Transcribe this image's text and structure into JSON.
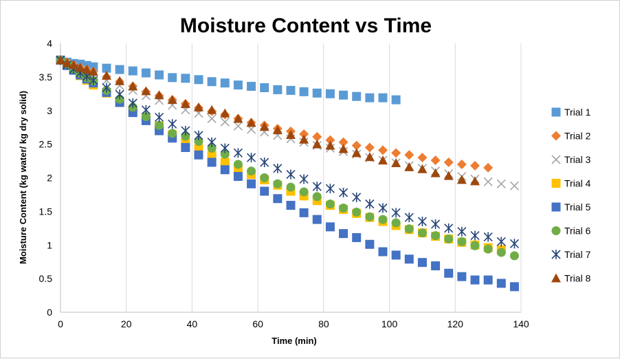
{
  "chart_data": {
    "type": "scatter",
    "title": "Moisture Content vs Time",
    "xlabel": "Time (min)",
    "ylabel": "Moisture Content (kg water/ kg dry solid)",
    "xlim": [
      0,
      140
    ],
    "ylim": [
      0,
      4
    ],
    "xticks": [
      0,
      20,
      40,
      60,
      80,
      100,
      120,
      140
    ],
    "yticks": [
      0,
      0.5,
      1,
      1.5,
      2,
      2.5,
      3,
      3.5,
      4
    ],
    "grid": "vertical",
    "legend_position": "right",
    "series": [
      {
        "name": "Trial 1",
        "marker": "square",
        "color": "#5b9bd5",
        "x": [
          0,
          2,
          4,
          6,
          8,
          10,
          14,
          18,
          22,
          26,
          30,
          34,
          38,
          42,
          46,
          50,
          54,
          58,
          62,
          66,
          70,
          74,
          78,
          82,
          86,
          90,
          94,
          98,
          102
        ],
        "y": [
          3.75,
          3.72,
          3.7,
          3.69,
          3.67,
          3.65,
          3.63,
          3.61,
          3.59,
          3.56,
          3.53,
          3.49,
          3.48,
          3.46,
          3.43,
          3.41,
          3.38,
          3.36,
          3.34,
          3.31,
          3.3,
          3.28,
          3.26,
          3.25,
          3.23,
          3.21,
          3.19,
          3.19,
          3.16
        ]
      },
      {
        "name": "Trial 2",
        "marker": "diamond",
        "color": "#ed7d31",
        "x": [
          0,
          2,
          4,
          6,
          8,
          10,
          14,
          18,
          22,
          26,
          30,
          34,
          38,
          42,
          46,
          50,
          54,
          58,
          62,
          66,
          70,
          74,
          78,
          82,
          86,
          90,
          94,
          98,
          102,
          106,
          110,
          114,
          118,
          122,
          126,
          130
        ],
        "y": [
          3.75,
          3.72,
          3.68,
          3.64,
          3.61,
          3.58,
          3.5,
          3.43,
          3.36,
          3.28,
          3.22,
          3.16,
          3.1,
          3.04,
          2.99,
          2.94,
          2.88,
          2.82,
          2.78,
          2.73,
          2.69,
          2.65,
          2.61,
          2.56,
          2.53,
          2.48,
          2.45,
          2.41,
          2.37,
          2.34,
          2.3,
          2.26,
          2.23,
          2.2,
          2.18,
          2.15
        ]
      },
      {
        "name": "Trial 3",
        "marker": "x",
        "color": "#a5a5a5",
        "x": [
          0,
          2,
          4,
          6,
          8,
          10,
          14,
          18,
          22,
          26,
          30,
          34,
          38,
          42,
          46,
          50,
          54,
          58,
          62,
          66,
          70,
          74,
          78,
          82,
          86,
          90,
          94,
          98,
          102,
          106,
          110,
          114,
          118,
          122,
          126,
          130,
          134,
          138
        ],
        "y": [
          3.75,
          3.7,
          3.66,
          3.61,
          3.57,
          3.53,
          3.45,
          3.37,
          3.3,
          3.22,
          3.15,
          3.08,
          3.01,
          2.96,
          2.88,
          2.83,
          2.77,
          2.72,
          2.68,
          2.63,
          2.58,
          2.53,
          2.48,
          2.44,
          2.39,
          2.35,
          2.3,
          2.26,
          2.22,
          2.18,
          2.14,
          2.1,
          2.06,
          2.02,
          1.98,
          1.94,
          1.91,
          1.88
        ]
      },
      {
        "name": "Trial 4",
        "marker": "square",
        "color": "#ffc000",
        "x": [
          0,
          2,
          4,
          6,
          8,
          10,
          14,
          18,
          22,
          26,
          30,
          34,
          38,
          42,
          46,
          50,
          54,
          58,
          62,
          66,
          70,
          74,
          78,
          82,
          86,
          90,
          94,
          98,
          102,
          106,
          110,
          114,
          118,
          122,
          126,
          130,
          134
        ],
        "y": [
          3.75,
          3.68,
          3.6,
          3.52,
          3.45,
          3.38,
          3.26,
          3.12,
          3.0,
          2.88,
          2.77,
          2.64,
          2.53,
          2.43,
          2.33,
          2.23,
          2.13,
          2.05,
          1.97,
          1.89,
          1.8,
          1.73,
          1.66,
          1.59,
          1.53,
          1.47,
          1.41,
          1.35,
          1.29,
          1.23,
          1.18,
          1.13,
          1.09,
          1.04,
          1.0,
          0.96,
          0.93
        ]
      },
      {
        "name": "Trial 5",
        "marker": "square",
        "color": "#4472c4",
        "x": [
          0,
          2,
          4,
          6,
          8,
          10,
          14,
          18,
          22,
          26,
          30,
          34,
          38,
          42,
          46,
          50,
          54,
          58,
          62,
          66,
          70,
          74,
          78,
          82,
          86,
          90,
          94,
          98,
          102,
          106,
          110,
          114,
          118,
          122,
          126,
          130,
          134,
          138
        ],
        "y": [
          3.75,
          3.67,
          3.6,
          3.53,
          3.47,
          3.41,
          3.27,
          3.12,
          2.97,
          2.85,
          2.7,
          2.59,
          2.45,
          2.34,
          2.23,
          2.12,
          2.02,
          1.91,
          1.8,
          1.69,
          1.59,
          1.48,
          1.38,
          1.27,
          1.17,
          1.11,
          1.01,
          0.9,
          0.85,
          0.79,
          0.74,
          0.69,
          0.58,
          0.53,
          0.48,
          0.48,
          0.43,
          0.38
        ]
      },
      {
        "name": "Trial 6",
        "marker": "circle",
        "color": "#70ad47",
        "x": [
          0,
          2,
          4,
          6,
          8,
          10,
          14,
          18,
          22,
          26,
          30,
          34,
          38,
          42,
          46,
          50,
          54,
          58,
          62,
          66,
          70,
          74,
          78,
          82,
          86,
          90,
          94,
          98,
          102,
          106,
          110,
          114,
          118,
          122,
          126,
          130,
          134,
          138
        ],
        "y": [
          3.75,
          3.69,
          3.62,
          3.55,
          3.49,
          3.44,
          3.3,
          3.17,
          3.05,
          2.91,
          2.78,
          2.66,
          2.62,
          2.54,
          2.44,
          2.35,
          2.2,
          2.1,
          2.0,
          1.91,
          1.86,
          1.79,
          1.72,
          1.61,
          1.55,
          1.49,
          1.42,
          1.38,
          1.33,
          1.24,
          1.18,
          1.14,
          1.09,
          1.05,
          0.99,
          0.94,
          0.89,
          0.84
        ]
      },
      {
        "name": "Trial 7",
        "marker": "asterisk",
        "color": "#264478",
        "x": [
          0,
          2,
          4,
          6,
          8,
          10,
          14,
          18,
          22,
          26,
          30,
          34,
          38,
          42,
          46,
          50,
          54,
          58,
          62,
          66,
          70,
          74,
          78,
          82,
          86,
          90,
          94,
          98,
          102,
          106,
          110,
          114,
          118,
          122,
          126,
          130,
          134,
          138
        ],
        "y": [
          3.75,
          3.68,
          3.62,
          3.56,
          3.51,
          3.45,
          3.34,
          3.24,
          3.11,
          3.01,
          2.9,
          2.8,
          2.7,
          2.63,
          2.53,
          2.44,
          2.37,
          2.3,
          2.23,
          2.14,
          2.05,
          1.98,
          1.87,
          1.84,
          1.78,
          1.71,
          1.61,
          1.55,
          1.48,
          1.41,
          1.35,
          1.31,
          1.25,
          1.2,
          1.14,
          1.12,
          1.05,
          1.02
        ]
      },
      {
        "name": "Trial 8",
        "marker": "triangle",
        "color": "#9e480e",
        "x": [
          0,
          2,
          4,
          6,
          8,
          10,
          14,
          18,
          22,
          26,
          30,
          34,
          38,
          42,
          46,
          50,
          54,
          58,
          62,
          66,
          70,
          74,
          78,
          82,
          86,
          90,
          94,
          98,
          102,
          106,
          110,
          114,
          118,
          122,
          126
        ],
        "y": [
          3.75,
          3.71,
          3.68,
          3.64,
          3.61,
          3.58,
          3.52,
          3.44,
          3.36,
          3.29,
          3.23,
          3.16,
          3.1,
          3.05,
          3.01,
          2.96,
          2.88,
          2.82,
          2.76,
          2.71,
          2.64,
          2.57,
          2.5,
          2.48,
          2.43,
          2.37,
          2.31,
          2.26,
          2.22,
          2.16,
          2.13,
          2.07,
          2.03,
          1.97,
          1.95
        ]
      }
    ]
  }
}
